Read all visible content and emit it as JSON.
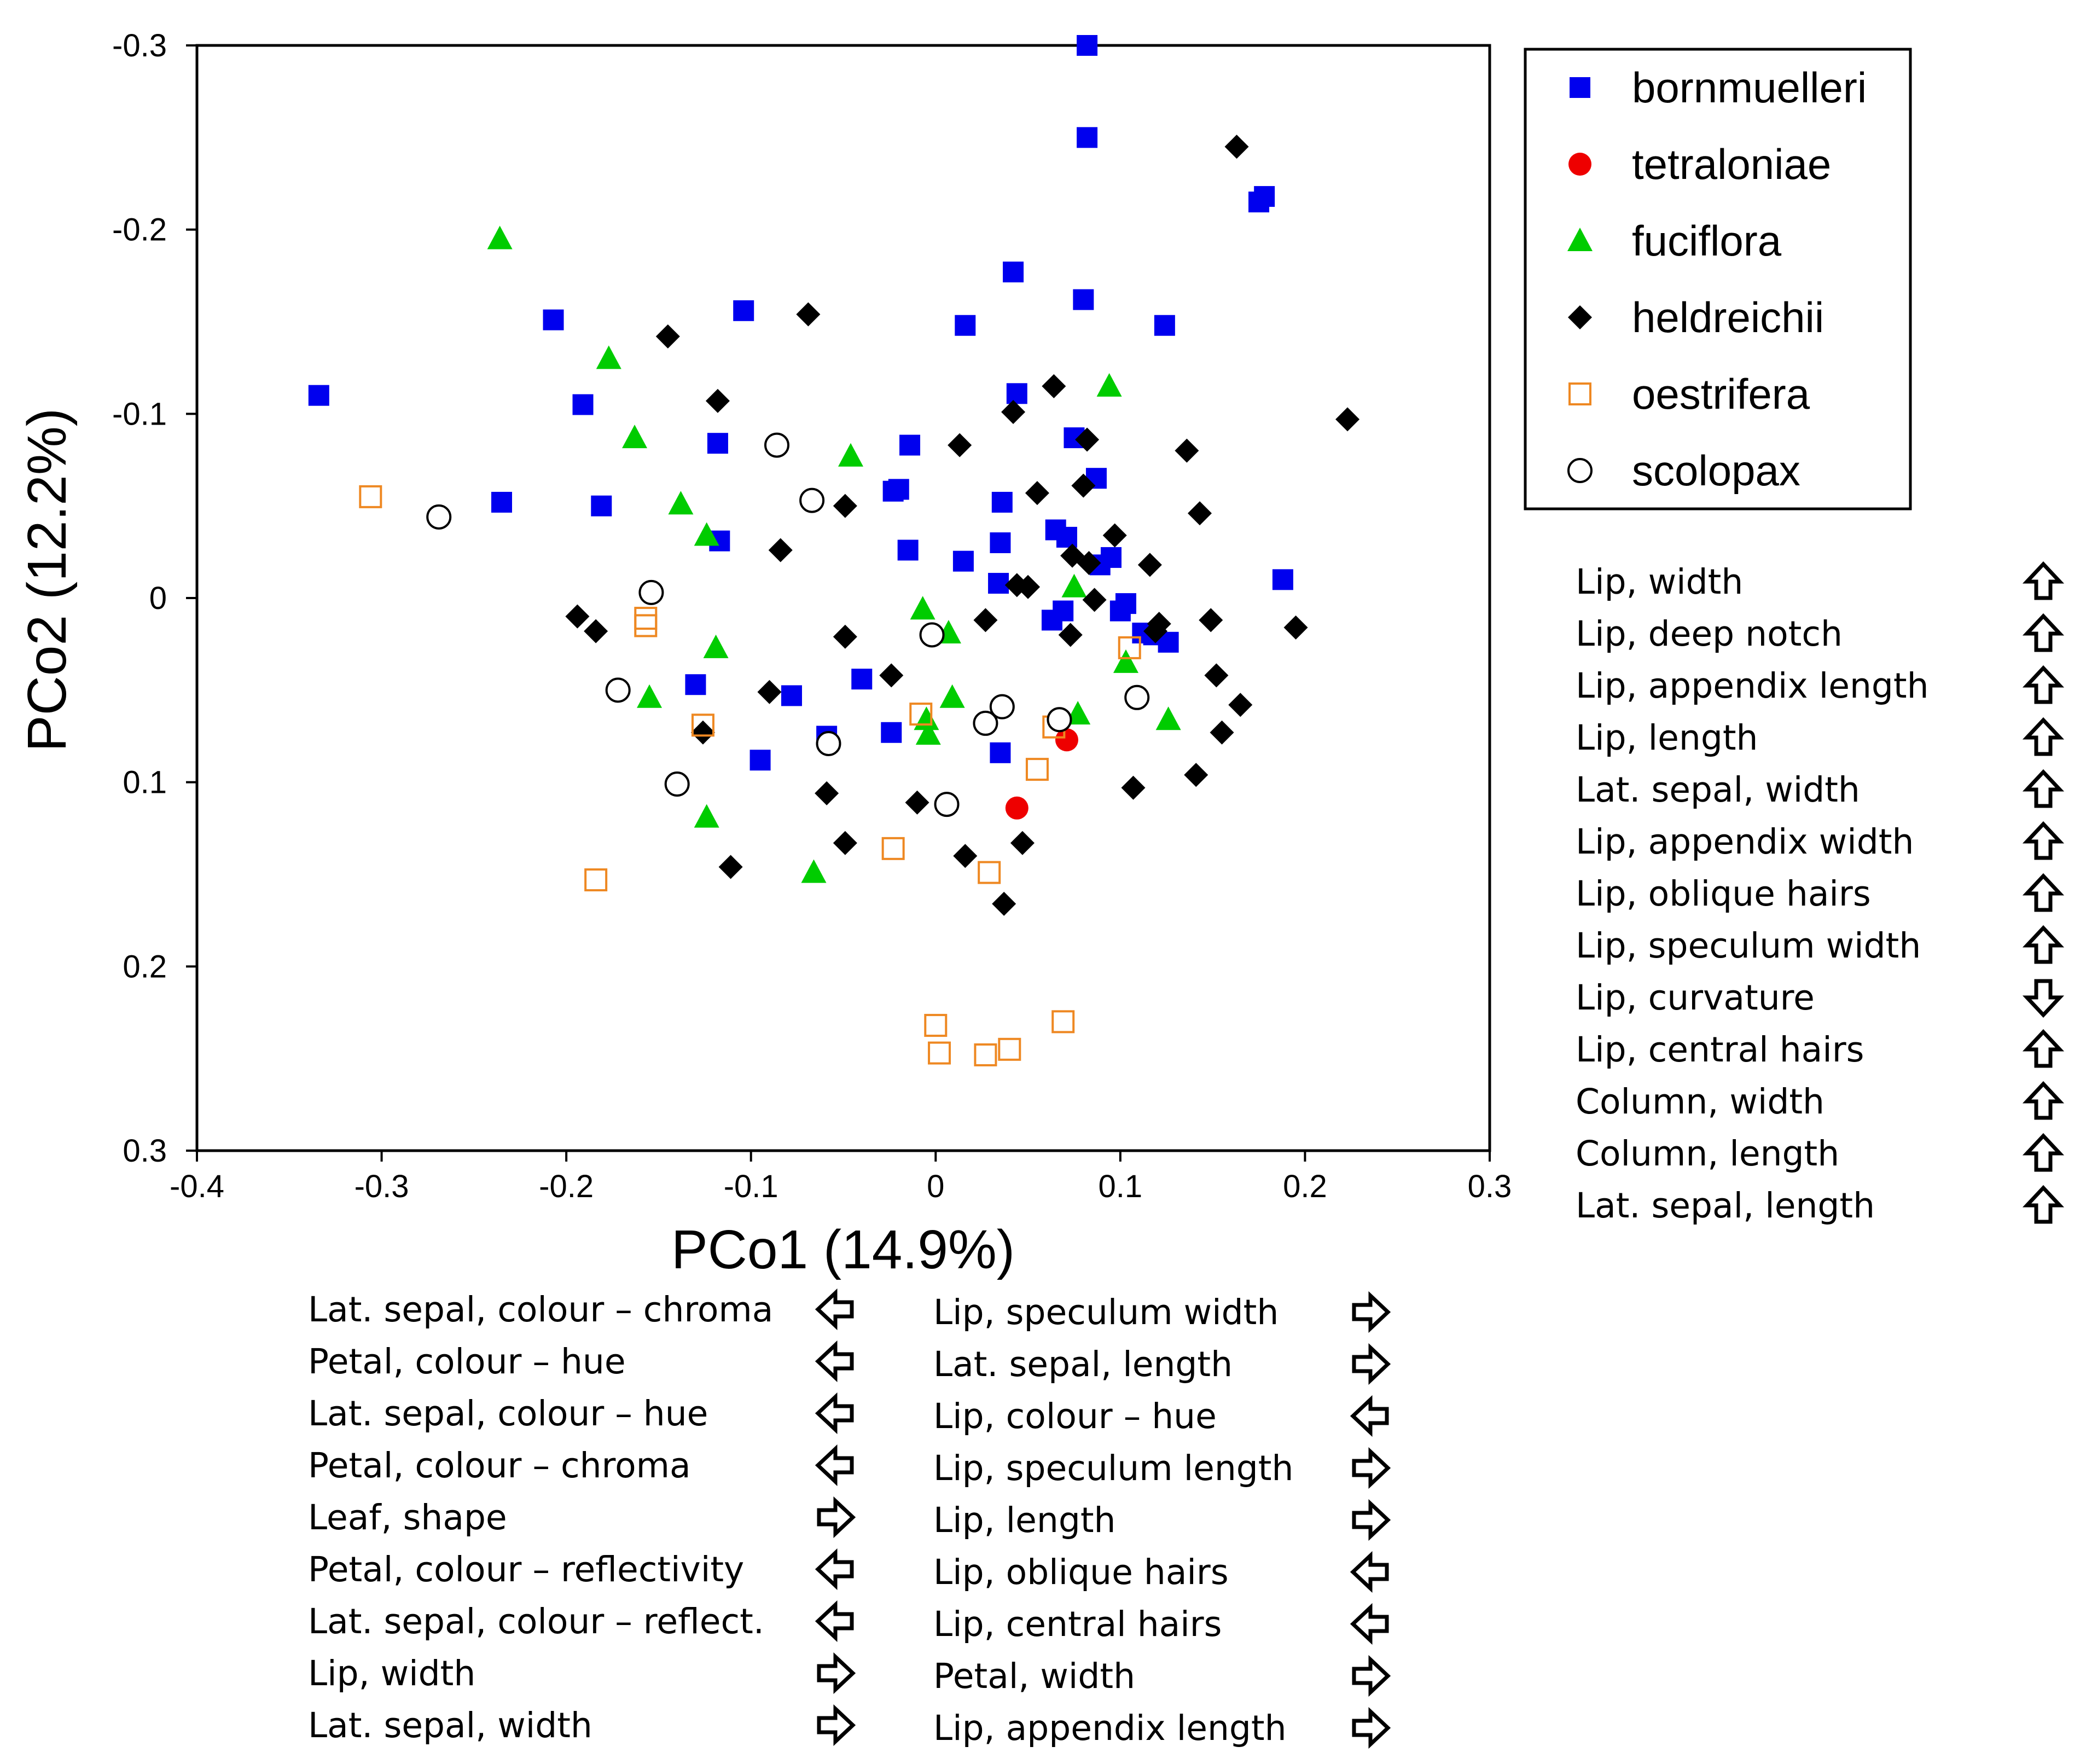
{
  "chart_data": {
    "type": "scatter",
    "title": "",
    "xlabel": "PCo1 (14.9%)",
    "ylabel": "PCo2 (12.2%)",
    "xlim": [
      -0.4,
      0.3
    ],
    "ylim": [
      -0.3,
      0.3
    ],
    "y_axis_inverted": true,
    "grid": false,
    "legend_position": "top-right",
    "xticks": [
      "-0.4",
      "-0.3",
      "-0.2",
      "-0.1",
      "0",
      "0.1",
      "0.2",
      "0.3"
    ],
    "yticks": [
      "-0.3",
      "-0.2",
      "-0.1",
      "0",
      "0.1",
      "0.2",
      "0.3"
    ],
    "series": [
      {
        "name": "bornmuelleri",
        "marker": "filled-square",
        "color": "#0000ee",
        "points": [
          [
            0.082,
            -0.3
          ],
          [
            0.082,
            -0.25
          ],
          [
            0.175,
            -0.215
          ],
          [
            0.178,
            -0.218
          ],
          [
            0.042,
            -0.177
          ],
          [
            0.08,
            -0.162
          ],
          [
            -0.104,
            -0.156
          ],
          [
            -0.207,
            -0.151
          ],
          [
            0.016,
            -0.148
          ],
          [
            0.124,
            -0.148
          ],
          [
            -0.334,
            -0.11
          ],
          [
            0.044,
            -0.111
          ],
          [
            -0.191,
            -0.105
          ],
          [
            0.075,
            -0.087
          ],
          [
            -0.118,
            -0.084
          ],
          [
            -0.014,
            -0.083
          ],
          [
            0.087,
            -0.065
          ],
          [
            -0.02,
            -0.059
          ],
          [
            -0.023,
            -0.058
          ],
          [
            -0.235,
            -0.052
          ],
          [
            -0.181,
            -0.05
          ],
          [
            0.036,
            -0.052
          ],
          [
            0.065,
            -0.037
          ],
          [
            0.071,
            -0.033
          ],
          [
            -0.117,
            -0.031
          ],
          [
            0.035,
            -0.03
          ],
          [
            -0.015,
            -0.026
          ],
          [
            0.095,
            -0.022
          ],
          [
            0.015,
            -0.02
          ],
          [
            0.089,
            -0.018
          ],
          [
            0.188,
            -0.01
          ],
          [
            0.034,
            -0.008
          ],
          [
            0.103,
            0.003
          ],
          [
            0.069,
            0.007
          ],
          [
            0.1,
            0.007
          ],
          [
            0.063,
            0.012
          ],
          [
            0.112,
            0.019
          ],
          [
            0.118,
            0.02
          ],
          [
            0.126,
            0.024
          ],
          [
            -0.13,
            0.047
          ],
          [
            -0.078,
            0.053
          ],
          [
            -0.04,
            0.044
          ],
          [
            -0.059,
            0.075
          ],
          [
            -0.024,
            0.073
          ],
          [
            0.035,
            0.084
          ],
          [
            -0.095,
            0.088
          ]
        ]
      },
      {
        "name": "tetraloniae",
        "marker": "filled-circle",
        "color": "#ee0000",
        "points": [
          [
            0.071,
            0.077
          ],
          [
            0.044,
            0.114
          ]
        ]
      },
      {
        "name": "fuciflora",
        "marker": "filled-triangle",
        "color": "#00cc00",
        "points": [
          [
            -0.236,
            -0.195
          ],
          [
            -0.177,
            -0.13
          ],
          [
            -0.163,
            -0.087
          ],
          [
            -0.138,
            -0.051
          ],
          [
            -0.124,
            -0.034
          ],
          [
            -0.046,
            -0.077
          ],
          [
            0.094,
            -0.115
          ],
          [
            0.075,
            -0.006
          ],
          [
            -0.007,
            0.006
          ],
          [
            0.007,
            0.019
          ],
          [
            -0.119,
            0.027
          ],
          [
            0.103,
            0.035
          ],
          [
            -0.155,
            0.054
          ],
          [
            0.009,
            0.054
          ],
          [
            -0.005,
            0.066
          ],
          [
            -0.004,
            0.074
          ],
          [
            0.077,
            0.063
          ],
          [
            0.126,
            0.066
          ],
          [
            -0.124,
            0.119
          ],
          [
            -0.066,
            0.149
          ]
        ]
      },
      {
        "name": "heldreichii",
        "marker": "filled-diamond",
        "color": "#000000",
        "points": [
          [
            0.163,
            -0.245
          ],
          [
            -0.145,
            -0.142
          ],
          [
            -0.069,
            -0.154
          ],
          [
            -0.118,
            -0.107
          ],
          [
            0.064,
            -0.115
          ],
          [
            0.042,
            -0.101
          ],
          [
            0.223,
            -0.097
          ],
          [
            0.013,
            -0.083
          ],
          [
            0.082,
            -0.086
          ],
          [
            0.136,
            -0.08
          ],
          [
            0.08,
            -0.061
          ],
          [
            0.055,
            -0.057
          ],
          [
            -0.049,
            -0.05
          ],
          [
            0.143,
            -0.046
          ],
          [
            -0.084,
            -0.026
          ],
          [
            0.097,
            -0.034
          ],
          [
            0.074,
            -0.023
          ],
          [
            0.083,
            -0.019
          ],
          [
            0.116,
            -0.018
          ],
          [
            0.044,
            -0.007
          ],
          [
            0.05,
            -0.006
          ],
          [
            0.086,
            0.001
          ],
          [
            -0.194,
            0.01
          ],
          [
            -0.184,
            0.018
          ],
          [
            0.027,
            0.012
          ],
          [
            0.149,
            0.012
          ],
          [
            0.195,
            0.016
          ],
          [
            0.121,
            0.014
          ],
          [
            0.119,
            0.018
          ],
          [
            0.073,
            0.02
          ],
          [
            -0.049,
            0.021
          ],
          [
            -0.024,
            0.042
          ],
          [
            0.152,
            0.042
          ],
          [
            -0.09,
            0.051
          ],
          [
            0.165,
            0.058
          ],
          [
            -0.126,
            0.073
          ],
          [
            0.155,
            0.073
          ],
          [
            -0.059,
            0.106
          ],
          [
            0.141,
            0.096
          ],
          [
            -0.01,
            0.111
          ],
          [
            0.107,
            0.103
          ],
          [
            -0.049,
            0.133
          ],
          [
            0.016,
            0.14
          ],
          [
            0.047,
            0.133
          ],
          [
            -0.111,
            0.146
          ],
          [
            0.037,
            0.166
          ]
        ]
      },
      {
        "name": "oestrifera",
        "marker": "open-square",
        "color": "#ee8822",
        "points": [
          [
            -0.306,
            -0.055
          ],
          [
            -0.157,
            0.011
          ],
          [
            -0.157,
            0.015
          ],
          [
            0.105,
            0.027
          ],
          [
            -0.126,
            0.069
          ],
          [
            -0.008,
            0.063
          ],
          [
            0.064,
            0.07
          ],
          [
            0.055,
            0.093
          ],
          [
            -0.184,
            0.153
          ],
          [
            -0.023,
            0.136
          ],
          [
            0.029,
            0.149
          ],
          [
            0.0,
            0.232
          ],
          [
            0.069,
            0.23
          ],
          [
            0.002,
            0.247
          ],
          [
            0.027,
            0.248
          ],
          [
            0.04,
            0.245
          ]
        ]
      },
      {
        "name": "scolopax",
        "marker": "open-circle",
        "color": "#000000",
        "points": [
          [
            -0.269,
            -0.044
          ],
          [
            -0.086,
            -0.083
          ],
          [
            -0.067,
            -0.053
          ],
          [
            -0.154,
            -0.003
          ],
          [
            -0.172,
            0.05
          ],
          [
            -0.002,
            0.02
          ],
          [
            -0.058,
            0.079
          ],
          [
            0.036,
            0.059
          ],
          [
            0.027,
            0.068
          ],
          [
            0.067,
            0.066
          ],
          [
            0.109,
            0.054
          ],
          [
            -0.14,
            0.101
          ],
          [
            0.006,
            0.112
          ]
        ]
      }
    ],
    "right_panel_loadings": [
      {
        "label": "Lip, width",
        "arrow": "up"
      },
      {
        "label": "Lip, deep notch",
        "arrow": "up"
      },
      {
        "label": "Lip, appendix length",
        "arrow": "up"
      },
      {
        "label": "Lip, length",
        "arrow": "up"
      },
      {
        "label": "Lat. sepal, width",
        "arrow": "up"
      },
      {
        "label": "Lip, appendix width",
        "arrow": "up"
      },
      {
        "label": "Lip, oblique hairs",
        "arrow": "up"
      },
      {
        "label": "Lip, speculum width",
        "arrow": "up"
      },
      {
        "label": "Lip, curvature",
        "arrow": "down"
      },
      {
        "label": "Lip, central hairs",
        "arrow": "up"
      },
      {
        "label": "Column, width",
        "arrow": "up"
      },
      {
        "label": "Column, length",
        "arrow": "up"
      },
      {
        "label": "Lat. sepal, length",
        "arrow": "up"
      }
    ],
    "bottom_left_loadings": [
      {
        "label": "Lat. sepal, colour – chroma",
        "arrow": "left"
      },
      {
        "label": "Petal, colour – hue",
        "arrow": "left"
      },
      {
        "label": "Lat. sepal, colour – hue",
        "arrow": "left"
      },
      {
        "label": "Petal, colour – chroma",
        "arrow": "left"
      },
      {
        "label": "Leaf, shape",
        "arrow": "right"
      },
      {
        "label": "Petal, colour – reflectivity",
        "arrow": "left"
      },
      {
        "label": "Lat. sepal, colour – reflect.",
        "arrow": "left"
      },
      {
        "label": "Lip, width",
        "arrow": "right"
      },
      {
        "label": "Lat. sepal, width",
        "arrow": "right"
      }
    ],
    "bottom_right_loadings": [
      {
        "label": "Lip, speculum width",
        "arrow": "right"
      },
      {
        "label": "Lat. sepal, length",
        "arrow": "right"
      },
      {
        "label": "Lip, colour – hue",
        "arrow": "left"
      },
      {
        "label": "Lip, speculum length",
        "arrow": "right"
      },
      {
        "label": "Lip, length",
        "arrow": "right"
      },
      {
        "label": "Lip, oblique hairs",
        "arrow": "left"
      },
      {
        "label": "Lip, central hairs",
        "arrow": "left"
      },
      {
        "label": "Petal, width",
        "arrow": "right"
      },
      {
        "label": "Lip, appendix length",
        "arrow": "right"
      }
    ]
  }
}
